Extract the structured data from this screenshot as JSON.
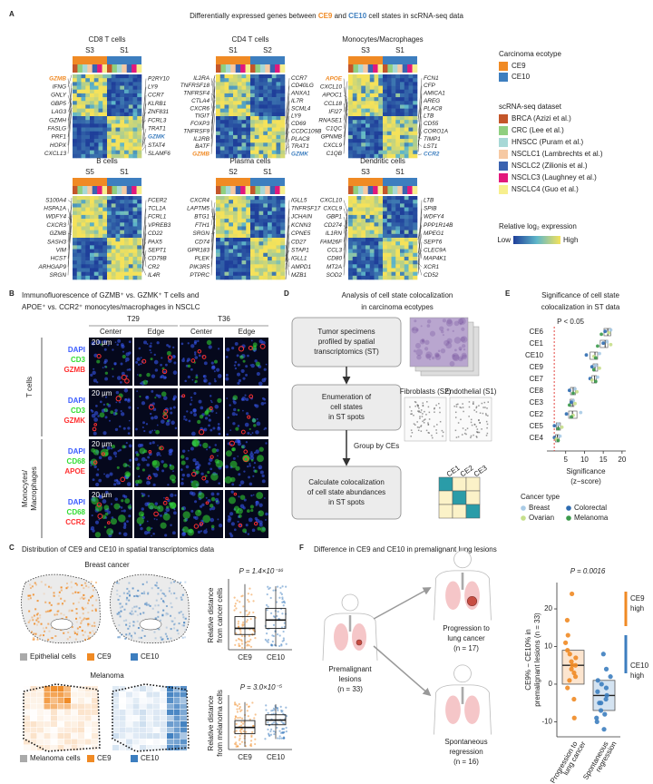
{
  "panel_labels": [
    "A",
    "B",
    "C",
    "D",
    "E",
    "F"
  ],
  "panel_a": {
    "title": [
      "Differentially expressed genes between ",
      "CE9",
      " and ",
      "CE10",
      " cell states in scRNA-seq data"
    ],
    "heatmaps": [
      {
        "title": "CD8 T cells",
        "states": [
          "S3",
          "S1"
        ],
        "genes_left": [
          {
            "name": "GZMB",
            "color": "#f08a24"
          },
          "IFNG",
          "GNLY",
          "GBP5",
          "LAG3",
          "GZMH",
          "FASLG",
          "PRF1",
          "HOPX",
          "CXCL13"
        ],
        "genes_right": [
          "P2RY10",
          "LY9",
          "CCR7",
          "KLRB1",
          "ZNF831",
          "FCRL3",
          "TRAT1",
          {
            "name": "GZMK",
            "color": "#3d7ebf"
          },
          "STAT4",
          "SLAMF6"
        ]
      },
      {
        "title": "CD4 T cells",
        "states": [
          "S1",
          "S2"
        ],
        "genes_left": [
          "IL2RA",
          "TNFRSF18",
          "TNFRSF4",
          "CTLA4",
          "CXCR6",
          "TIGIT",
          "FOXP3",
          "TNFRSF9",
          "IL2RB",
          "BATF",
          {
            "name": "GZMB",
            "color": "#f08a24"
          }
        ],
        "genes_right": [
          "CCR7",
          "CD40LG",
          "ANXA1",
          "IL7R",
          "SCML4",
          "LY9",
          "CD69",
          "CCDC109B",
          "PLAC8",
          "TRAT1",
          {
            "name": "GZMK",
            "color": "#3d7ebf"
          }
        ]
      },
      {
        "title": "Monocytes/Macrophages",
        "states": [
          "S3",
          "S1"
        ],
        "genes_left": [
          {
            "name": "APOE",
            "color": "#f08a24"
          },
          "CXCL10",
          "APOC1",
          "CCL18",
          "IFI27",
          "RNASE1",
          "C1QC",
          "GPNMB",
          "CXCL9",
          "C1QB"
        ],
        "genes_right": [
          "FCN1",
          "CFP",
          "AMICA1",
          "AREG",
          "PLAC8",
          "LTB",
          "CD55",
          "CORO1A",
          "TIMP1",
          "LST1",
          {
            "name": "CCR2",
            "color": "#3d7ebf"
          }
        ]
      },
      {
        "title": "B cells",
        "states": [
          "S5",
          "S1"
        ],
        "genes_left": [
          "S100A4",
          "HSPA1A",
          "WDFY4",
          "CXCR3",
          "GZMB",
          "SASH3",
          "VIM",
          "HCST",
          "ARHGAP9",
          "SRGN"
        ],
        "genes_right": [
          "FCER2",
          "TCL1A",
          "FCRL1",
          "VPREB3",
          "CD22",
          "PAX5",
          "SEPT1",
          "CD79B",
          "CR2",
          "IL4R"
        ]
      },
      {
        "title": "Plasma cells",
        "states": [
          "S2",
          "S1"
        ],
        "genes_left": [
          "CXCR4",
          "LAPTM5",
          "BTG1",
          "FTH1",
          "SRGN",
          "CD74",
          "GPR183",
          "PLEK",
          "PIK3R5",
          "PTPRC"
        ],
        "genes_right": [
          "IGLL5",
          "TNFRSF17",
          "JCHAIN",
          "KCNN3",
          "CPNE5",
          "CD27",
          "STAP1",
          "IGLL1",
          "AMPD1",
          "MZB1"
        ]
      },
      {
        "title": "Dendritic cells",
        "states": [
          "S3",
          "S1"
        ],
        "genes_left": [
          "CXCL10",
          "CXCL9",
          "GBP1",
          "CD274",
          "IL1RN",
          "FAM26F",
          "CCL3",
          "CD80",
          "MT2A",
          "SOD2"
        ],
        "genes_right": [
          "LTB",
          "SPIB",
          "WDFY4",
          "PPP1R14B",
          "MPEG1",
          "SEPT6",
          "CLEC9A",
          "MAP4K1",
          "XCR1",
          "CD52"
        ]
      }
    ],
    "legend": {
      "ecotype_title": "Carcinoma ecotype",
      "ecotypes": [
        {
          "name": "CE9",
          "color": "#f08a24"
        },
        {
          "name": "CE10",
          "color": "#3d7ebf"
        }
      ],
      "dataset_title": "scRNA-seq dataset",
      "datasets": [
        {
          "name": "BRCA (Azizi et al.)",
          "color": "#c4562a"
        },
        {
          "name": "CRC (Lee et al.)",
          "color": "#8fcf7f"
        },
        {
          "name": "HNSCC (Puram et al.)",
          "color": "#a7d8d6"
        },
        {
          "name": "NSCLC1 (Lambrechts et al.)",
          "color": "#f6c9a3"
        },
        {
          "name": "NSCLC2 (Zilionis et al.)",
          "color": "#3a62b0"
        },
        {
          "name": "NSCLC3 (Laughney et al.)",
          "color": "#e2187c"
        },
        {
          "name": "NSCLC4 (Guo et al.)",
          "color": "#f7ef8e"
        }
      ],
      "expression_title": "Relative log₂ expression",
      "low": "Low",
      "high": "High"
    }
  },
  "panel_b": {
    "title": [
      "Immunofluorescence of GZMB⁺ vs. GZMK⁺ T cells and",
      "APOE⁺ vs. CCR2⁺ monocytes/macrophages in NSCLC"
    ],
    "tumors": [
      "T29",
      "T36"
    ],
    "regions": [
      "Center",
      "Edge"
    ],
    "scale_bar": "20 µm",
    "groups": [
      {
        "label": [
          "T cells"
        ],
        "rows": [
          [
            "DAPI",
            "CD3",
            "GZMB"
          ],
          [
            "DAPI",
            "CD3",
            "GZMK"
          ]
        ]
      },
      {
        "label": [
          "Monocytes/",
          "Macrophages"
        ],
        "rows": [
          [
            "DAPI",
            "CD68",
            "APOE"
          ],
          [
            "DAPI",
            "CD68",
            "CCR2"
          ]
        ]
      }
    ]
  },
  "panel_c": {
    "title": "Distribution of CE9 and CE10 in spatial transcriptomics data",
    "sections": [
      {
        "title": "Breast cancer",
        "legend": [
          "Epithelial cells",
          "CE9",
          "CE10"
        ],
        "p_value": "P = 1.4×10⁻¹⁶",
        "y_label": [
          "Relative distance",
          "from cancer cells"
        ],
        "categories": [
          "CE9",
          "CE10"
        ],
        "ylim": [
          0,
          1
        ],
        "boxes": [
          {
            "low": 0.02,
            "q1": 0.22,
            "median": 0.31,
            "q3": 0.48,
            "high": 0.95
          },
          {
            "low": 0.05,
            "q1": 0.31,
            "median": 0.43,
            "q3": 0.6,
            "high": 0.92
          }
        ]
      },
      {
        "title": "Melanoma",
        "legend": [
          "Melanoma cells",
          "CE9",
          "CE10"
        ],
        "p_value": "P = 3.0×10⁻⁵",
        "y_label": [
          "Relative distance",
          "from melanoma cells"
        ],
        "categories": [
          "CE9",
          "CE10"
        ],
        "ylim": [
          0,
          1
        ],
        "boxes": [
          {
            "low": 0.05,
            "q1": 0.3,
            "median": 0.42,
            "q3": 0.55,
            "high": 0.9
          },
          {
            "low": 0.2,
            "q1": 0.47,
            "median": 0.56,
            "q3": 0.66,
            "high": 0.86
          }
        ]
      }
    ]
  },
  "panel_d": {
    "title": [
      "Analysis of cell state colocalization",
      "in carcinoma ecotypes"
    ],
    "steps": [
      [
        "Tumor specimens",
        "profiled by spatial",
        "transcriptomics (ST)"
      ],
      [
        "Enumeration of",
        "cell states",
        "in ST spots"
      ],
      [
        "Calculate colocalization",
        "of cell state abundances",
        "in ST spots"
      ]
    ],
    "group_label": "Group by CEs",
    "maps": [
      "Fibroblasts (S2)",
      "Endothelial (S1)"
    ],
    "matrix_labels": [
      "CE1",
      "CE2",
      "CE3"
    ]
  },
  "panel_e": {
    "title": [
      "Significance of cell state",
      "colocalization in ST data"
    ],
    "categories": [
      "CE6",
      "CE1",
      "CE10",
      "CE9",
      "CE7",
      "CE8",
      "CE3",
      "CE2",
      "CE5",
      "CE4"
    ],
    "xlim": [
      0,
      21
    ],
    "xticks": [
      5,
      10,
      15,
      20
    ],
    "threshold": 1.96,
    "threshold_label": "P < 0.05",
    "x_label": [
      "Significance",
      "(z−score)"
    ],
    "boxes": [
      {
        "q1": 15.2,
        "median": 16.2,
        "q3": 17.0
      },
      {
        "q1": 14.2,
        "median": 15.5,
        "q3": 16.2
      },
      {
        "q1": 11.5,
        "median": 12.8,
        "q3": 13.5
      },
      {
        "q1": 12.3,
        "median": 12.8,
        "q3": 13.5
      },
      {
        "q1": 12.0,
        "median": 12.7,
        "q3": 13.2
      },
      {
        "q1": 6.3,
        "median": 7.0,
        "q3": 7.6
      },
      {
        "q1": 6.2,
        "median": 6.8,
        "q3": 7.2
      },
      {
        "q1": 5.8,
        "median": 6.8,
        "q3": 8.0
      },
      {
        "q1": 2.5,
        "median": 3.0,
        "q3": 3.6
      },
      {
        "q1": 2.3,
        "median": 2.8,
        "q3": 3.2
      }
    ],
    "legend_title": "Cancer type",
    "series": [
      {
        "name": "Breast",
        "color": "#a9cbe6",
        "values": [
          17.0,
          16.0,
          14.0,
          13.0,
          13.5,
          7.5,
          7.0,
          9.0,
          3.0,
          3.5
        ]
      },
      {
        "name": "Colorectal",
        "color": "#2d6bb0",
        "values": [
          15.5,
          15.0,
          10.5,
          12.0,
          11.5,
          6.0,
          6.5,
          5.2,
          2.0,
          2.0
        ]
      },
      {
        "name": "Ovarian",
        "color": "#c6df8a",
        "values": [
          16.5,
          17.0,
          12.5,
          14.0,
          12.0,
          8.0,
          7.5,
          7.0,
          4.0,
          2.5
        ]
      },
      {
        "name": "Melanoma",
        "color": "#3b9a4b",
        "values": [
          14.5,
          13.5,
          13.0,
          12.5,
          13.0,
          7.0,
          6.0,
          6.5,
          3.0,
          3.0
        ]
      }
    ]
  },
  "panel_f": {
    "title": "Difference in CE9 and CE10 in premalignant lung lesions",
    "lesion_label": [
      "Premalignant",
      "lesions",
      "(n = 33)"
    ],
    "outcomes": [
      [
        "Progression to",
        "lung cancer",
        "(n = 17)"
      ],
      [
        "Spontaneous",
        "regression",
        "(n = 16)"
      ]
    ],
    "p_value": "P = 0.0016",
    "y_label": [
      "CE9% − CE10% in",
      "premalignant lesions (n = 33)"
    ],
    "ylim": [
      -14,
      27
    ],
    "yticks": [
      -10,
      0,
      10,
      20
    ],
    "categories": [
      [
        "Progression to",
        "lung cancer"
      ],
      [
        "Spontaneous",
        "regression"
      ]
    ],
    "groups": [
      {
        "color": "#f08a24",
        "values": [
          24,
          17,
          13,
          11,
          9,
          8,
          7,
          6,
          5,
          5,
          4,
          3,
          2,
          1,
          -1,
          -4,
          -9
        ],
        "q1": 0,
        "median": 5,
        "q3": 9
      },
      {
        "color": "#3d7ebf",
        "values": [
          8,
          4,
          2,
          1,
          0,
          -1,
          -2,
          -3,
          -4,
          -5,
          -5,
          -7,
          -8,
          -9,
          -10,
          -12
        ],
        "q1": -7,
        "median": -3,
        "q3": 1
      }
    ],
    "arrow_labels": [
      [
        "CE9",
        "high"
      ],
      [
        "CE10",
        "high"
      ]
    ]
  }
}
